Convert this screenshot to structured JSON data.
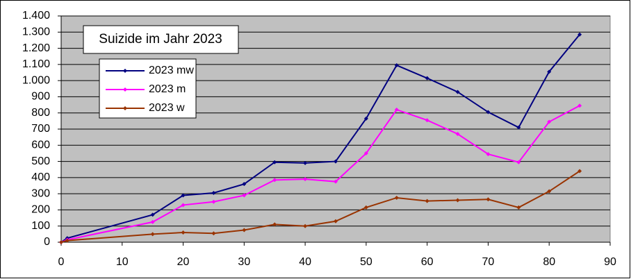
{
  "chart_data": {
    "type": "line",
    "title": "Suizide im Jahr 2023",
    "x": [
      0,
      1,
      15,
      20,
      25,
      30,
      35,
      40,
      45,
      50,
      55,
      60,
      65,
      70,
      75,
      80,
      85
    ],
    "series": [
      {
        "name": "2023 mw",
        "color": "#000080",
        "values": [
          0,
          25,
          170,
          290,
          305,
          360,
          495,
          490,
          500,
          765,
          1095,
          1015,
          930,
          805,
          710,
          1055,
          1285
        ]
      },
      {
        "name": "2023 m",
        "color": "#ff00ff",
        "values": [
          0,
          15,
          125,
          230,
          250,
          290,
          385,
          390,
          375,
          550,
          820,
          755,
          670,
          545,
          495,
          745,
          845
        ]
      },
      {
        "name": "2023 w",
        "color": "#993300",
        "values": [
          0,
          10,
          50,
          60,
          55,
          75,
          110,
          100,
          130,
          215,
          275,
          255,
          260,
          265,
          215,
          315,
          440
        ]
      }
    ],
    "xlim": [
      0,
      90
    ],
    "xticks": [
      0,
      10,
      20,
      30,
      40,
      50,
      60,
      70,
      80,
      90
    ],
    "ylim": [
      0,
      1400
    ],
    "yticks": [
      0,
      100,
      200,
      300,
      400,
      500,
      600,
      700,
      800,
      900,
      {
        "value": 1000,
        "label": "1.000"
      },
      {
        "value": 1100,
        "label": "1.100"
      },
      {
        "value": 1200,
        "label": "1.200"
      },
      {
        "value": 1300,
        "label": "1.300"
      },
      {
        "value": 1400,
        "label": "1.400"
      }
    ],
    "grid": true
  }
}
